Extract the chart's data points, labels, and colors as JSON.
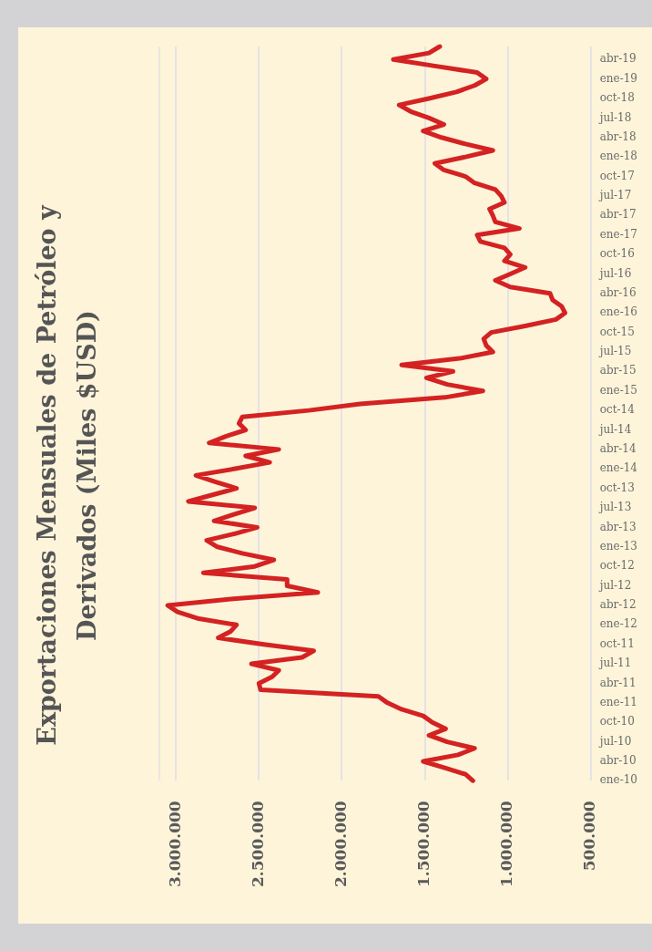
{
  "chart_data": {
    "type": "line",
    "title": "Exportaciones Mensuales de Petróleo y Derivados (Miles $USD)",
    "orientation": "horizontal",
    "categories": [
      null,
      null,
      "abr-19",
      null,
      null,
      "ene-19",
      null,
      null,
      "oct-18",
      null,
      null,
      "jul-18",
      null,
      null,
      "abr-18",
      null,
      null,
      "ene-18",
      null,
      null,
      "oct-17",
      null,
      null,
      "jul-17",
      null,
      null,
      "abr-17",
      null,
      null,
      "ene-17",
      null,
      null,
      "oct-16",
      null,
      null,
      "jul-16",
      null,
      null,
      "abr-16",
      null,
      null,
      "ene-16",
      null,
      null,
      "oct-15",
      null,
      null,
      "jul-15",
      null,
      null,
      "abr-15",
      null,
      null,
      "ene-15",
      null,
      null,
      "oct-14",
      null,
      null,
      "jul-14",
      null,
      null,
      "abr-14",
      null,
      null,
      "ene-14",
      null,
      null,
      "oct-13",
      null,
      null,
      "jul-13",
      null,
      null,
      "abr-13",
      null,
      null,
      "ene-13",
      null,
      null,
      "oct-12",
      null,
      null,
      "jul-12",
      null,
      null,
      "abr-12",
      null,
      null,
      "ene-12",
      null,
      null,
      "oct-11",
      null,
      null,
      "jul-11",
      null,
      null,
      "abr-11",
      null,
      null,
      "ene-11",
      null,
      null,
      "oct-10",
      null,
      null,
      "jul-10",
      null,
      null,
      "abr-10",
      null,
      null,
      "ene-10"
    ],
    "series": [
      {
        "color": "#d42222",
        "values": [
          1410000,
          1475000,
          1690000,
          1440000,
          1185000,
          1130000,
          1200000,
          1310000,
          1475000,
          1655000,
          1585000,
          1475000,
          1385000,
          1510000,
          1400000,
          1255000,
          1090000,
          1255000,
          1440000,
          1385000,
          1255000,
          1200000,
          1075000,
          1040000,
          1020000,
          1110000,
          1090000,
          1075000,
          930000,
          1185000,
          1165000,
          1020000,
          985000,
          1020000,
          895000,
          985000,
          1075000,
          985000,
          745000,
          730000,
          675000,
          655000,
          710000,
          895000,
          1100000,
          1145000,
          1130000,
          1090000,
          1290000,
          1640000,
          1330000,
          1490000,
          1365000,
          1150000,
          1380000,
          1890000,
          2200000,
          2600000,
          2620000,
          2580000,
          2700000,
          2800000,
          2380000,
          2580000,
          2435000,
          2650000,
          2880000,
          2760000,
          2635000,
          2780000,
          2925000,
          2525000,
          2650000,
          2770000,
          2510000,
          2650000,
          2815000,
          2750000,
          2600000,
          2410000,
          2525000,
          2835000,
          2330000,
          2330000,
          2145000,
          2655000,
          3050000,
          2990000,
          2870000,
          2635000,
          2670000,
          2745000,
          2470000,
          2170000,
          2240000,
          2545000,
          2380000,
          2420000,
          2500000,
          2490000,
          1780000,
          1725000,
          1640000,
          1510000,
          1455000,
          1375000,
          1475000,
          1365000,
          1200000,
          1300000,
          1510000,
          1380000,
          1255000,
          1210000
        ]
      }
    ],
    "xlim": [
      3100000,
      500000
    ],
    "xticks": [
      {
        "value": 3000000,
        "label": "3.000.000"
      },
      {
        "value": 2500000,
        "label": "2.500.000"
      },
      {
        "value": 2000000,
        "label": "2.000.000"
      },
      {
        "value": 1500000,
        "label": "1.500.000"
      },
      {
        "value": 1000000,
        "label": "1.000.000"
      },
      {
        "value": 500000,
        "label": "500.000"
      }
    ],
    "grid": "x"
  }
}
